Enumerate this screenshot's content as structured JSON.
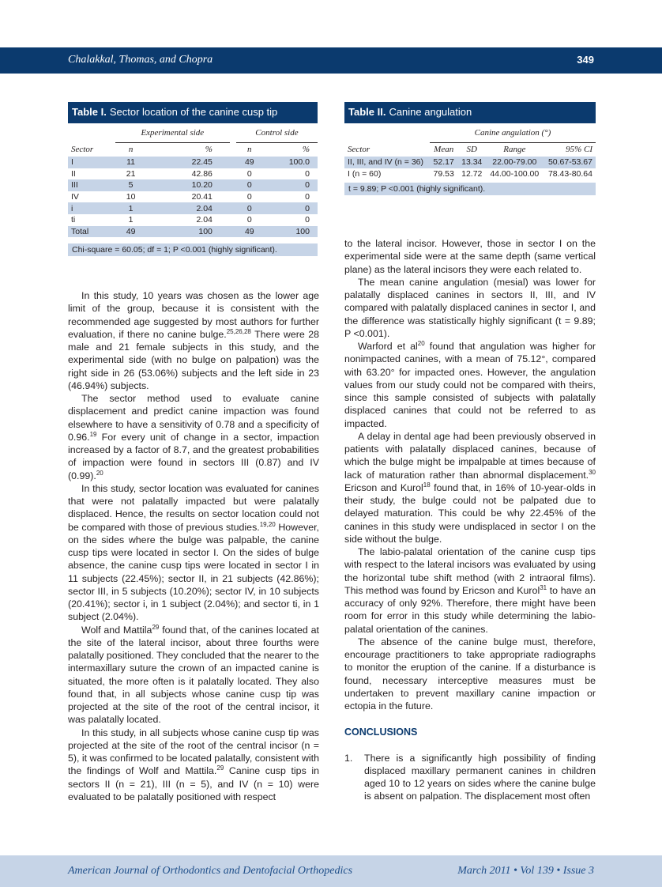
{
  "header": {
    "authors": "Chalakkal, Thomas, and Chopra",
    "page_number": "349"
  },
  "footer": {
    "journal": "American Journal of Orthodontics and Dentofacial Orthopedics",
    "issue": "March 2011 • Vol 139 • Issue 3"
  },
  "table1": {
    "label": "Table I.",
    "title": "Sector location of the canine cusp tip",
    "group_headers": [
      "Experimental side",
      "Control side"
    ],
    "columns": [
      "Sector",
      "n",
      "%",
      "n",
      "%"
    ],
    "rows": [
      [
        "I",
        "11",
        "22.45",
        "49",
        "100.0"
      ],
      [
        "II",
        "21",
        "42.86",
        "0",
        "0"
      ],
      [
        "III",
        "5",
        "10.20",
        "0",
        "0"
      ],
      [
        "IV",
        "10",
        "20.41",
        "0",
        "0"
      ],
      [
        "i",
        "1",
        "2.04",
        "0",
        "0"
      ],
      [
        "ti",
        "1",
        "2.04",
        "0",
        "0"
      ],
      [
        "Total",
        "49",
        "100",
        "49",
        "100"
      ]
    ],
    "note": "Chi-square = 60.05; df = 1; P <0.001 (highly significant)."
  },
  "table2": {
    "label": "Table II.",
    "title": "Canine angulation",
    "group_header": "Canine angulation (°)",
    "columns": [
      "Sector",
      "Mean",
      "SD",
      "Range",
      "95% CI"
    ],
    "rows": [
      [
        "II, III, and IV (n = 36)",
        "52.17",
        "13.34",
        "22.00-79.00",
        "50.67-53.67"
      ],
      [
        "I (n = 60)",
        "79.53",
        "12.72",
        "44.00-100.00",
        "78.43-80.64"
      ]
    ],
    "note": "t = 9.89; P <0.001 (highly significant)."
  },
  "left_column": [
    [
      [
        "In this study, 10 years was chosen as the lower age limit of the group, because it is consistent with the recommended age suggested by most authors for further evaluation, if there no canine bulge."
      ],
      [
        "25,26,28",
        1
      ],
      [
        " There were 28 male and 21 female subjects in this study, and the experimental side (with no bulge on palpation) was the right side in 26 (53.06%) subjects and the left side in 23 (46.94%) subjects."
      ]
    ],
    [
      [
        "The sector method used to evaluate canine displacement and predict canine impaction was found elsewhere to have a sensitivity of 0.78 and a specificity of 0.96."
      ],
      [
        "19",
        1
      ],
      [
        " For every unit of change in a sector, impaction increased by a factor of 8.7, and the greatest probabilities of impaction were found in sectors III (0.87) and IV (0.99)."
      ],
      [
        "20",
        1
      ]
    ],
    [
      [
        "In this study, sector location was evaluated for canines that were not palatally impacted but were palatally displaced. Hence, the results on sector location could not be compared with those of previous studies."
      ],
      [
        "19,20",
        1
      ],
      [
        " However, on the sides where the bulge was palpable, the canine cusp tips were located in sector I. On the sides of bulge absence, the canine cusp tips were located in sector I in 11 subjects (22.45%); sector II, in 21 subjects (42.86%); sector III, in 5 subjects (10.20%); sector IV, in 10 subjects (20.41%); sector i, in 1 subject (2.04%); and sector ti, in 1 subject (2.04%)."
      ]
    ],
    [
      [
        "Wolf and Mattila"
      ],
      [
        "29",
        1
      ],
      [
        " found that, of the canines located at the site of the lateral incisor, about three fourths were palatally positioned. They concluded that the nearer to the intermaxillary suture the crown of an impacted canine is situated, the more often is it palatally located. They also found that, in all subjects whose canine cusp tip was projected at the site of the root of the central incisor, it was palatally located."
      ]
    ],
    [
      [
        "In this study, in all subjects whose canine cusp tip was projected at the site of the root of the central incisor (n = 5), it was confirmed to be located palatally, consistent with the findings of Wolf and Mattila."
      ],
      [
        "29",
        1
      ],
      [
        " Canine cusp tips in sectors II (n = 21), III (n = 5), and IV (n = 10) were evaluated to be palatally positioned with respect"
      ]
    ]
  ],
  "right_column": [
    [
      [
        "to the lateral incisor. However, those in sector I on the experimental side were at the same depth (same vertical plane) as the lateral incisors they were each related to."
      ]
    ],
    [
      [
        "The mean canine angulation (mesial) was lower for palatally displaced canines in sectors II, III, and IV compared with palatally displaced canines in sector I, and the difference was statistically highly significant (t = 9.89; P <0.001)."
      ]
    ],
    [
      [
        "Warford et al"
      ],
      [
        "20",
        1
      ],
      [
        " found that angulation was higher for nonimpacted canines, with a mean of 75.12°, compared with 63.20° for impacted ones. However, the angulation values from our study could not be compared with theirs, since this sample consisted of subjects with palatally displaced canines that could not be referred to as impacted."
      ]
    ],
    [
      [
        "A delay in dental age had been previously observed in patients with palatally displaced canines, because of which the bulge might be impalpable at times because of lack of maturation rather than abnormal displacement."
      ],
      [
        "30",
        1
      ],
      [
        " Ericson and Kurol"
      ],
      [
        "18",
        1
      ],
      [
        " found that, in 16% of 10-year-olds in their study, the bulge could not be palpated due to delayed maturation. This could be why 22.45% of the canines in this study were undisplaced in sector I on the side without the bulge."
      ]
    ],
    [
      [
        "The labio-palatal orientation of the canine cusp tips with respect to the lateral incisors was evaluated by using the horizontal tube shift method (with 2 intraoral films). This method was found by Ericson and Kurol"
      ],
      [
        "31",
        1
      ],
      [
        " to have an accuracy of only 92%. Therefore, there might have been room for error in this study while determining the labio-palatal orientation of the canines."
      ]
    ],
    [
      [
        "The absence of the canine bulge must, therefore, encourage practitioners to take appropriate radiographs to monitor the eruption of the canine. If a disturbance is found, necessary interceptive measures must be undertaken to prevent maxillary canine impaction or ectopia in the future."
      ]
    ]
  ],
  "conclusions": {
    "heading": "CONCLUSIONS",
    "items": [
      {
        "num": "1.",
        "text": "There is a significantly high possibility of finding displaced maxillary permanent canines in children aged 10 to 12 years on sides where the canine bulge is absent on palpation. The displacement most often"
      }
    ]
  },
  "colors": {
    "brand_blue": "#0b3a6e",
    "shade_blue": "#c6d4e7"
  }
}
